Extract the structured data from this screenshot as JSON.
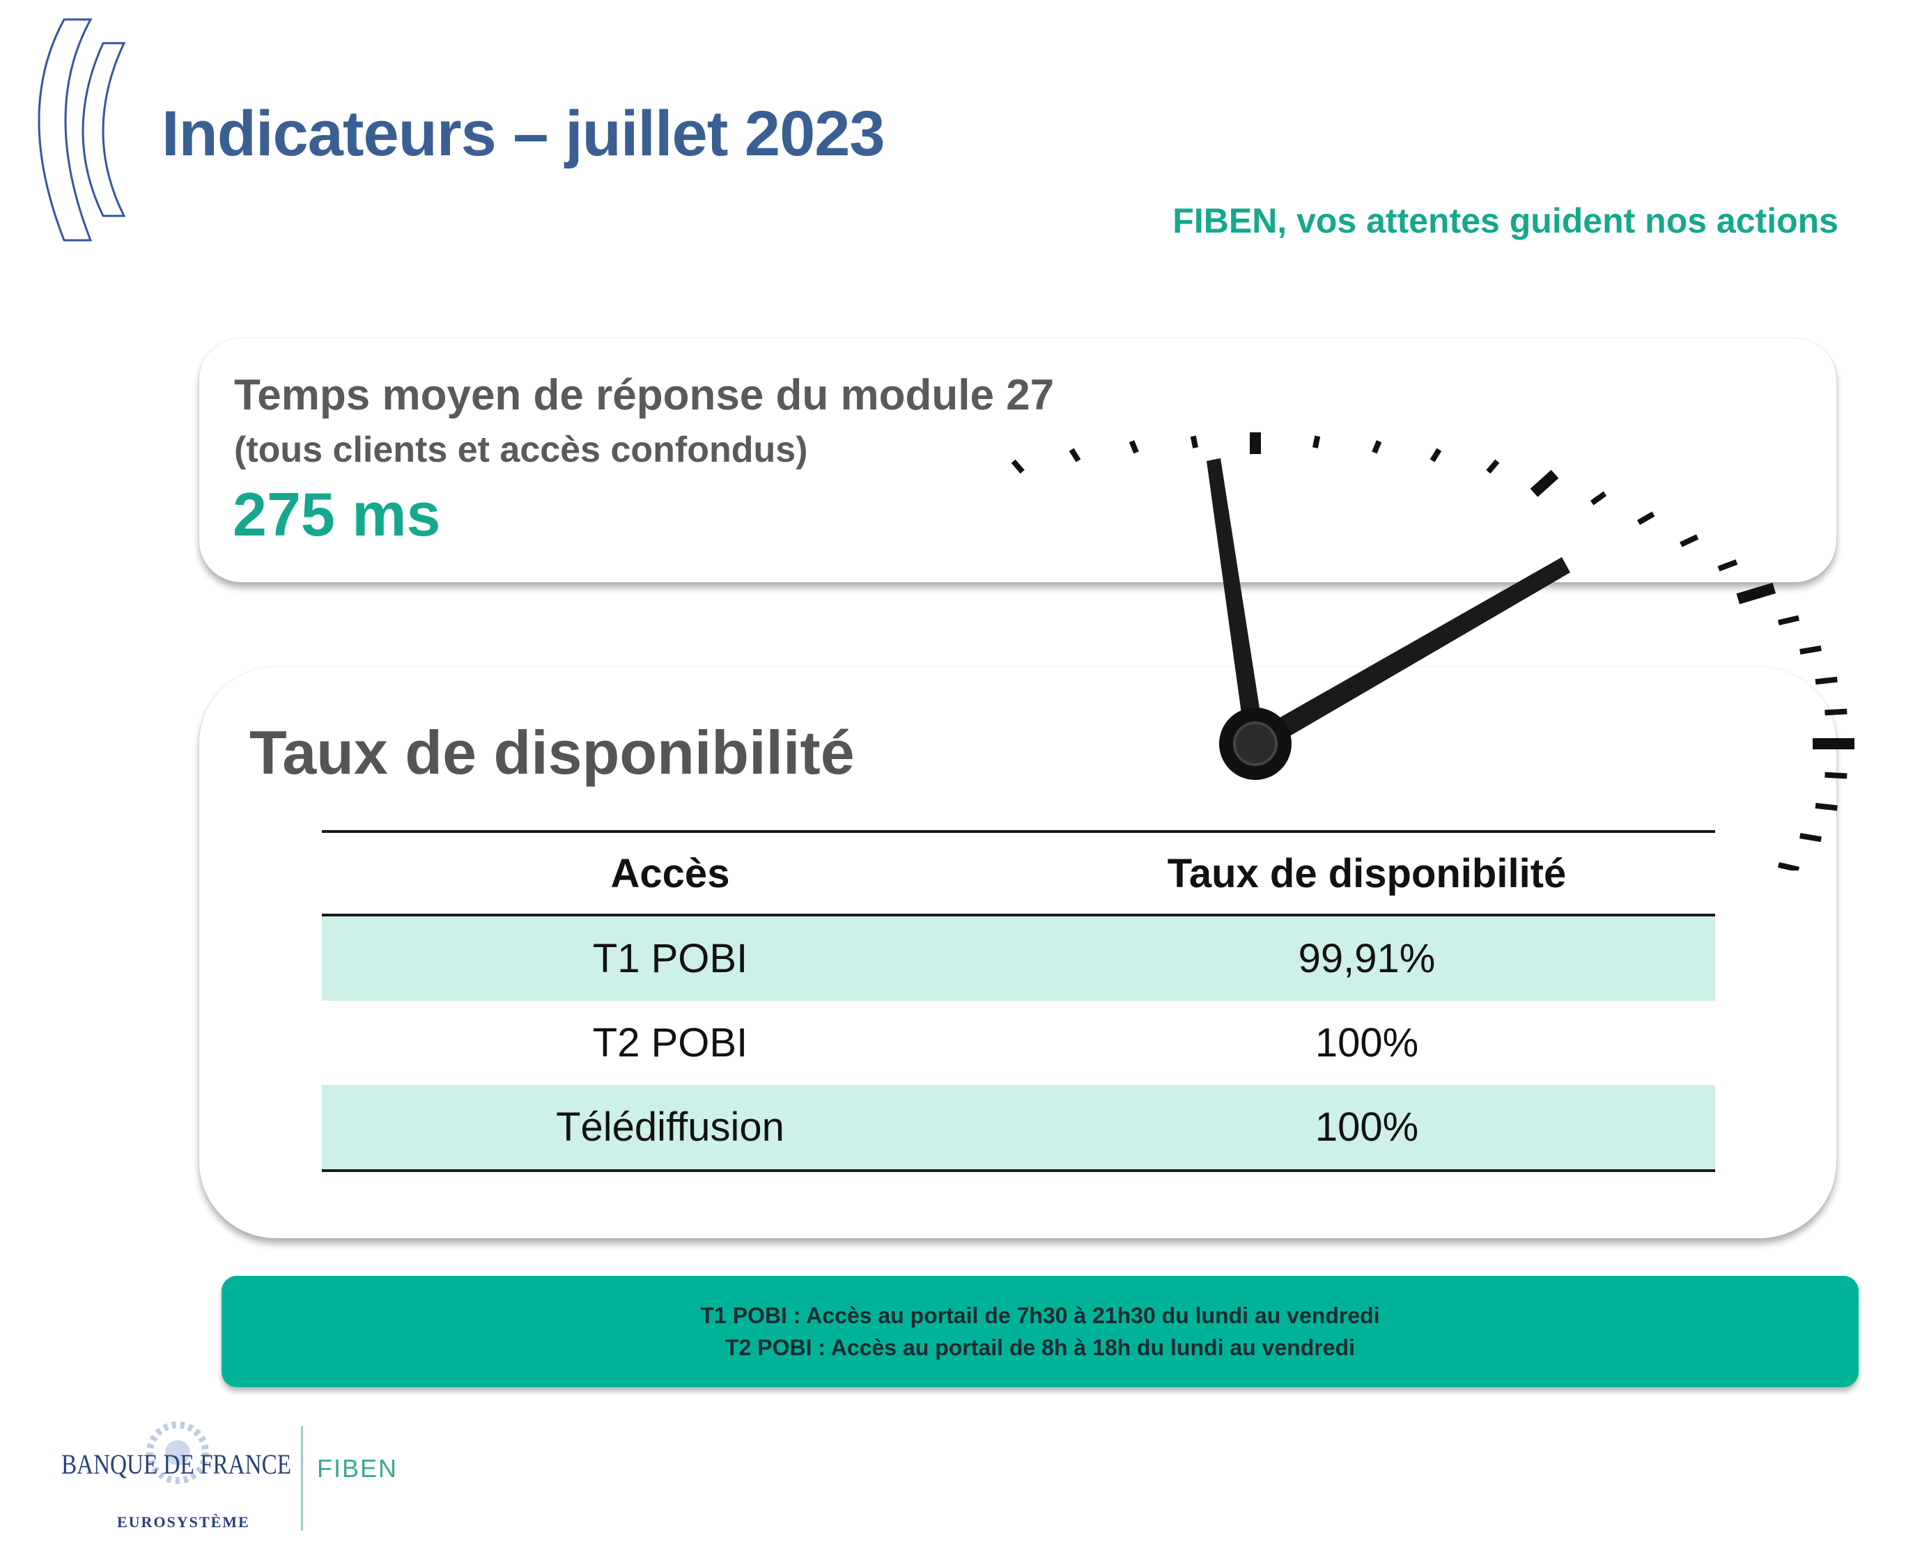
{
  "header": {
    "title": "Indicateurs – juillet 2023",
    "tagline": "FIBEN, vos attentes guident nos actions"
  },
  "response_time": {
    "title": "Temps  moyen de réponse du module 27",
    "subtitle": "(tous clients et accès confondus)",
    "value": "275 ms"
  },
  "availability": {
    "heading": "Taux de disponibilité",
    "columns": [
      "Accès",
      "Taux de disponibilité"
    ],
    "rows": [
      {
        "access": "T1 POBI",
        "rate": "99,91%"
      },
      {
        "access": "T2 POBI",
        "rate": "100%"
      },
      {
        "access": "Télédiffusion",
        "rate": "100%"
      }
    ]
  },
  "note": {
    "line1": "T1 POBI : Accès au portail de 7h30 à 21h30 du lundi au vendredi",
    "line2": "T2 POBI : Accès au portail de 8h à 18h du lundi au vendredi"
  },
  "logo": {
    "name": "BANQUE DE FRANCE",
    "subtitle": "EUROSYSTÈME",
    "product": "FIBEN"
  },
  "colors": {
    "title_blue": "#3a5f93",
    "accent_green": "#15a88e",
    "note_bg": "#00b398",
    "row_shade": "#cdf0e8"
  },
  "icons": [
    "bracket-decoration-icon",
    "clock-icon",
    "banque-de-france-logo-icon"
  ]
}
